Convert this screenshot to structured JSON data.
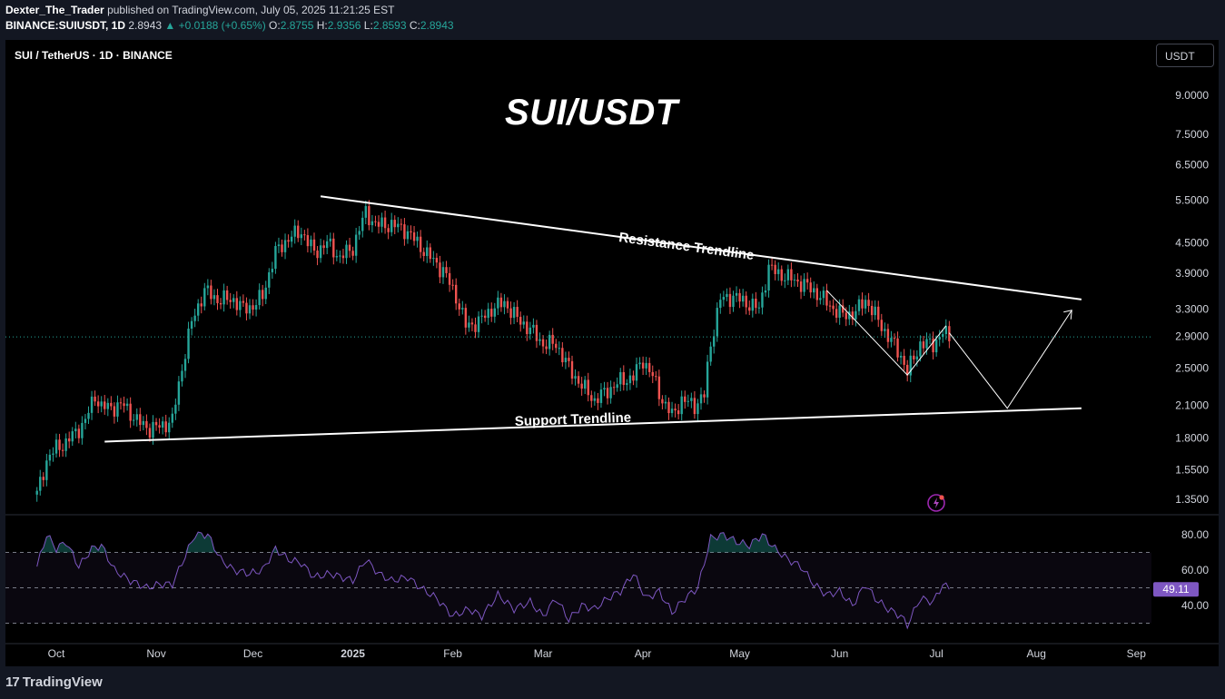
{
  "header": {
    "author": "Dexter_The_Trader",
    "published_text": "published on TradingView.com, July 05, 2025 11:21:25 EST",
    "symbol_line": "BINANCE:SUIUSDT, 1D",
    "last": "2.8943",
    "change": "▲ +0.0188 (+0.65%)",
    "o_label": "O:",
    "o": "2.8755",
    "h_label": "H:",
    "h": "2.9356",
    "l_label": "L:",
    "l": "2.8593",
    "c_label": "C:",
    "c": "2.8943"
  },
  "chart": {
    "symbol_title": "SUI / TetherUS · 1D · BINANCE",
    "big_title": "SUI/USDT",
    "currency_button": "USDT",
    "resistance_label": "Resistance Trendline",
    "support_label": "Support Trendline",
    "rsi_value_label": "49.11"
  },
  "footer": {
    "brand": "TradingView"
  },
  "colors": {
    "up": "#26a69a",
    "down": "#ef5350",
    "rsi": "#7e57c2",
    "background": "#000000",
    "chrome": "#131722"
  },
  "chart_data": [
    {
      "type": "candlestick",
      "title": "SUI / TetherUS · 1D · BINANCE",
      "scale": "log",
      "y_ticks": [
        9.0,
        7.5,
        6.5,
        5.5,
        4.5,
        3.9,
        3.3,
        2.9,
        2.5,
        2.1,
        1.8,
        1.55,
        1.35
      ],
      "y_tick_labels": [
        "9.0000",
        "7.5000",
        "6.5000",
        "5.5000",
        "4.5000",
        "3.9000",
        "3.3000",
        "2.9000",
        "2.5000",
        "2.1000",
        "1.8000",
        "1.5500",
        "1.3500"
      ],
      "x_tick_labels": [
        "Oct",
        "Nov",
        "Dec",
        "2025",
        "Feb",
        "Mar",
        "Apr",
        "May",
        "Jun",
        "Jul",
        "Aug",
        "Sep"
      ],
      "close_path": [
        [
          "2024-09-25",
          1.38
        ],
        [
          "2024-09-28",
          1.62
        ],
        [
          "2024-10-01",
          1.72
        ],
        [
          "2024-10-04",
          1.76
        ],
        [
          "2024-10-07",
          1.85
        ],
        [
          "2024-10-10",
          1.95
        ],
        [
          "2024-10-13",
          2.2
        ],
        [
          "2024-10-15",
          2.08
        ],
        [
          "2024-10-18",
          2.08
        ],
        [
          "2024-10-22",
          2.1
        ],
        [
          "2024-10-26",
          1.95
        ],
        [
          "2024-10-30",
          1.88
        ],
        [
          "2024-11-02",
          1.9
        ],
        [
          "2024-11-06",
          1.95
        ],
        [
          "2024-11-09",
          2.5
        ],
        [
          "2024-11-12",
          3.1
        ],
        [
          "2024-11-16",
          3.6
        ],
        [
          "2024-11-20",
          3.45
        ],
        [
          "2024-11-25",
          3.45
        ],
        [
          "2024-11-28",
          3.3
        ],
        [
          "2024-12-01",
          3.35
        ],
        [
          "2024-12-04",
          3.5
        ],
        [
          "2024-12-08",
          4.3
        ],
        [
          "2024-12-12",
          4.6
        ],
        [
          "2024-12-16",
          4.75
        ],
        [
          "2024-12-20",
          4.3
        ],
        [
          "2024-12-24",
          4.5
        ],
        [
          "2024-12-28",
          4.2
        ],
        [
          "2025-01-01",
          4.4
        ],
        [
          "2025-01-05",
          5.2
        ],
        [
          "2025-01-08",
          4.9
        ],
        [
          "2025-01-13",
          4.9
        ],
        [
          "2025-01-17",
          4.8
        ],
        [
          "2025-01-21",
          4.5
        ],
        [
          "2025-01-25",
          4.2
        ],
        [
          "2025-01-29",
          3.95
        ],
        [
          "2025-02-02",
          3.5
        ],
        [
          "2025-02-05",
          3.05
        ],
        [
          "2025-02-09",
          3.1
        ],
        [
          "2025-02-13",
          3.3
        ],
        [
          "2025-02-17",
          3.4
        ],
        [
          "2025-02-21",
          3.15
        ],
        [
          "2025-02-25",
          3.0
        ],
        [
          "2025-03-01",
          2.8
        ],
        [
          "2025-03-05",
          2.8
        ],
        [
          "2025-03-09",
          2.5
        ],
        [
          "2025-03-13",
          2.3
        ],
        [
          "2025-03-17",
          2.15
        ],
        [
          "2025-03-21",
          2.25
        ],
        [
          "2025-03-25",
          2.35
        ],
        [
          "2025-03-29",
          2.4
        ],
        [
          "2025-04-01",
          2.6
        ],
        [
          "2025-04-04",
          2.4
        ],
        [
          "2025-04-07",
          2.15
        ],
        [
          "2025-04-10",
          2.0
        ],
        [
          "2025-04-13",
          2.15
        ],
        [
          "2025-04-17",
          2.1
        ],
        [
          "2025-04-20",
          2.2
        ],
        [
          "2025-04-22",
          2.8
        ],
        [
          "2025-04-25",
          3.45
        ],
        [
          "2025-04-29",
          3.5
        ],
        [
          "2025-05-03",
          3.4
        ],
        [
          "2025-05-07",
          3.3
        ],
        [
          "2025-05-10",
          4.0
        ],
        [
          "2025-05-13",
          3.9
        ],
        [
          "2025-05-17",
          3.8
        ],
        [
          "2025-05-21",
          3.7
        ],
        [
          "2025-05-25",
          3.55
        ],
        [
          "2025-05-29",
          3.35
        ],
        [
          "2025-06-02",
          3.2
        ],
        [
          "2025-06-06",
          3.25
        ],
        [
          "2025-06-09",
          3.45
        ],
        [
          "2025-06-12",
          3.2
        ],
        [
          "2025-06-16",
          2.9
        ],
        [
          "2025-06-20",
          2.65
        ],
        [
          "2025-06-22",
          2.45
        ],
        [
          "2025-06-26",
          2.8
        ],
        [
          "2025-06-30",
          2.8
        ],
        [
          "2025-07-03",
          2.95
        ],
        [
          "2025-07-05",
          2.8943
        ]
      ],
      "last_price": 2.8943,
      "annotations": [
        {
          "label": "Resistance Trendline",
          "from": [
            "2024-12-22",
            5.6
          ],
          "to": [
            "2025-08-15",
            3.45
          ]
        },
        {
          "label": "Support Trendline",
          "from": [
            "2024-10-16",
            1.77
          ],
          "to": [
            "2025-08-15",
            2.07
          ]
        },
        {
          "label": "projected path",
          "points": [
            [
              "2025-07-05",
              2.95
            ],
            [
              "2025-07-23",
              2.07
            ],
            [
              "2025-08-12",
              3.28
            ]
          ]
        }
      ]
    },
    {
      "type": "line",
      "title": "RSI",
      "y_ticks": [
        80,
        60,
        40
      ],
      "y_tick_labels": [
        "80.00",
        "60.00",
        "40.00"
      ],
      "bands": [
        70,
        50,
        30
      ],
      "last_value": 49.11,
      "series": [
        {
          "values": [
            [
              "2024-09-25",
              62
            ],
            [
              "2024-09-28",
              80
            ],
            [
              "2024-10-01",
              72
            ],
            [
              "2024-10-04",
              76
            ],
            [
              "2024-10-08",
              62
            ],
            [
              "2024-10-12",
              72
            ],
            [
              "2024-10-15",
              74
            ],
            [
              "2024-10-19",
              60
            ],
            [
              "2024-10-24",
              54
            ],
            [
              "2024-10-29",
              50
            ],
            [
              "2024-11-02",
              52
            ],
            [
              "2024-11-06",
              52
            ],
            [
              "2024-11-10",
              68
            ],
            [
              "2024-11-13",
              80
            ],
            [
              "2024-11-17",
              80
            ],
            [
              "2024-11-21",
              66
            ],
            [
              "2024-11-25",
              60
            ],
            [
              "2024-11-30",
              58
            ],
            [
              "2024-12-04",
              60
            ],
            [
              "2024-12-08",
              72
            ],
            [
              "2024-12-12",
              66
            ],
            [
              "2024-12-16",
              64
            ],
            [
              "2024-12-20",
              56
            ],
            [
              "2024-12-25",
              58
            ],
            [
              "2025-01-01",
              54
            ],
            [
              "2025-01-05",
              66
            ],
            [
              "2025-01-09",
              58
            ],
            [
              "2025-01-13",
              54
            ],
            [
              "2025-01-18",
              56
            ],
            [
              "2025-01-22",
              50
            ],
            [
              "2025-01-27",
              44
            ],
            [
              "2025-02-01",
              34
            ],
            [
              "2025-02-06",
              38
            ],
            [
              "2025-02-10",
              34
            ],
            [
              "2025-02-15",
              46
            ],
            [
              "2025-02-20",
              38
            ],
            [
              "2025-02-25",
              42
            ],
            [
              "2025-03-01",
              34
            ],
            [
              "2025-03-05",
              44
            ],
            [
              "2025-03-09",
              32
            ],
            [
              "2025-03-13",
              40
            ],
            [
              "2025-03-17",
              38
            ],
            [
              "2025-03-21",
              44
            ],
            [
              "2025-03-25",
              48
            ],
            [
              "2025-03-29",
              58
            ],
            [
              "2025-04-02",
              44
            ],
            [
              "2025-04-06",
              48
            ],
            [
              "2025-04-10",
              36
            ],
            [
              "2025-04-14",
              44
            ],
            [
              "2025-04-18",
              50
            ],
            [
              "2025-04-22",
              78
            ],
            [
              "2025-04-26",
              80
            ],
            [
              "2025-04-30",
              76
            ],
            [
              "2025-05-04",
              74
            ],
            [
              "2025-05-08",
              80
            ],
            [
              "2025-05-12",
              72
            ],
            [
              "2025-05-16",
              66
            ],
            [
              "2025-05-20",
              62
            ],
            [
              "2025-05-24",
              52
            ],
            [
              "2025-05-28",
              46
            ],
            [
              "2025-06-01",
              48
            ],
            [
              "2025-06-05",
              40
            ],
            [
              "2025-06-09",
              52
            ],
            [
              "2025-06-12",
              44
            ],
            [
              "2025-06-16",
              38
            ],
            [
              "2025-06-20",
              34
            ],
            [
              "2025-06-22",
              29
            ],
            [
              "2025-06-26",
              44
            ],
            [
              "2025-06-30",
              42
            ],
            [
              "2025-07-03",
              52
            ],
            [
              "2025-07-05",
              49.11
            ]
          ]
        }
      ]
    }
  ]
}
